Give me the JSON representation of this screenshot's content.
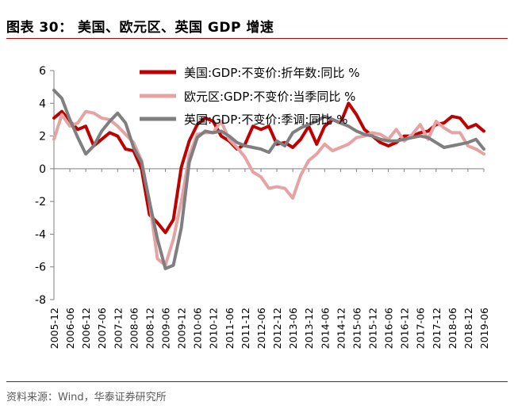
{
  "figure": {
    "title": "图表 30：   美国、欧元区、英国 GDP 增速",
    "source": "资料来源：Wind，华泰证券研究所"
  },
  "colors": {
    "accent_rule": "#c00000",
    "us": "#c00000",
    "eu": "#e5a3a3",
    "uk": "#7f7f7f"
  },
  "chart_data": {
    "type": "line",
    "ylim": [
      -8,
      6
    ],
    "yticks": [
      6,
      4,
      2,
      0,
      -2,
      -4,
      -6,
      -8
    ],
    "grid": false,
    "legend_position": "top-right",
    "x_tick_labels": [
      "2005-12",
      "2006-06",
      "2006-12",
      "2007-06",
      "2007-12",
      "2008-06",
      "2008-12",
      "2009-06",
      "2009-12",
      "2010-06",
      "2010-12",
      "2011-06",
      "2011-12",
      "2012-06",
      "2012-12",
      "2013-06",
      "2013-12",
      "2014-06",
      "2014-12",
      "2015-06",
      "2015-12",
      "2016-06",
      "2016-12",
      "2017-06",
      "2017-12",
      "2018-06",
      "2018-12",
      "2019-06"
    ],
    "x": [
      "2005-12",
      "2006-03",
      "2006-06",
      "2006-09",
      "2006-12",
      "2007-03",
      "2007-06",
      "2007-09",
      "2007-12",
      "2008-03",
      "2008-06",
      "2008-09",
      "2008-12",
      "2009-03",
      "2009-06",
      "2009-09",
      "2009-12",
      "2010-03",
      "2010-06",
      "2010-09",
      "2010-12",
      "2011-03",
      "2011-06",
      "2011-09",
      "2011-12",
      "2012-03",
      "2012-06",
      "2012-09",
      "2012-12",
      "2013-03",
      "2013-06",
      "2013-09",
      "2013-12",
      "2014-03",
      "2014-06",
      "2014-09",
      "2014-12",
      "2015-03",
      "2015-06",
      "2015-09",
      "2015-12",
      "2016-03",
      "2016-06",
      "2016-09",
      "2016-12",
      "2017-03",
      "2017-06",
      "2017-09",
      "2017-12",
      "2018-03",
      "2018-06",
      "2018-09",
      "2018-12",
      "2019-03",
      "2019-06"
    ],
    "series": [
      {
        "name": "美国:GDP:不变价:折年数:同比 %",
        "values": [
          3.1,
          3.5,
          2.9,
          2.4,
          2.6,
          1.4,
          1.8,
          2.2,
          2.0,
          1.2,
          1.1,
          0.0,
          -2.8,
          -3.3,
          -3.9,
          -3.1,
          0.1,
          1.7,
          2.7,
          3.1,
          2.9,
          2.0,
          1.7,
          1.2,
          1.5,
          2.6,
          2.4,
          2.6,
          1.5,
          1.6,
          1.3,
          1.8,
          2.6,
          1.5,
          2.6,
          3.0,
          2.8,
          4.0,
          3.3,
          2.4,
          2.0,
          1.6,
          1.4,
          1.6,
          2.0,
          2.0,
          2.2,
          2.3,
          2.7,
          2.8,
          3.2,
          3.1,
          2.5,
          2.7,
          2.3
        ]
      },
      {
        "name": "欧元区:GDP:不变价:当季同比 %",
        "values": [
          1.8,
          3.3,
          2.6,
          2.8,
          3.5,
          3.4,
          3.1,
          3.0,
          2.6,
          2.1,
          1.6,
          0.5,
          -2.0,
          -5.5,
          -5.9,
          -4.3,
          -2.0,
          0.8,
          2.1,
          2.2,
          2.2,
          2.9,
          1.8,
          1.3,
          0.7,
          -0.2,
          -0.5,
          -1.2,
          -1.1,
          -1.2,
          -1.8,
          -0.4,
          0.5,
          0.9,
          1.5,
          1.1,
          1.3,
          1.5,
          1.9,
          2.0,
          2.2,
          2.1,
          1.8,
          2.4,
          1.7,
          2.1,
          2.7,
          1.8,
          2.9,
          2.5,
          2.2,
          2.2,
          1.4,
          1.2,
          0.9
        ]
      },
      {
        "name": "英国:GDP:不变价:季调:同比 %",
        "values": [
          4.8,
          4.3,
          3.0,
          1.9,
          0.9,
          1.4,
          2.3,
          2.9,
          3.4,
          2.8,
          1.3,
          0.4,
          -2.0,
          -4.3,
          -6.1,
          -5.9,
          -3.6,
          0.4,
          1.9,
          2.3,
          2.2,
          2.3,
          2.0,
          1.6,
          1.4,
          1.3,
          1.2,
          1.0,
          1.7,
          1.4,
          2.2,
          2.5,
          2.7,
          2.9,
          3.2,
          3.0,
          2.8,
          2.6,
          2.3,
          2.1,
          2.0,
          1.8,
          1.7,
          1.7,
          1.8,
          1.9,
          2.0,
          1.9,
          1.6,
          1.3,
          1.4,
          1.5,
          1.6,
          1.8,
          1.2
        ]
      }
    ]
  }
}
